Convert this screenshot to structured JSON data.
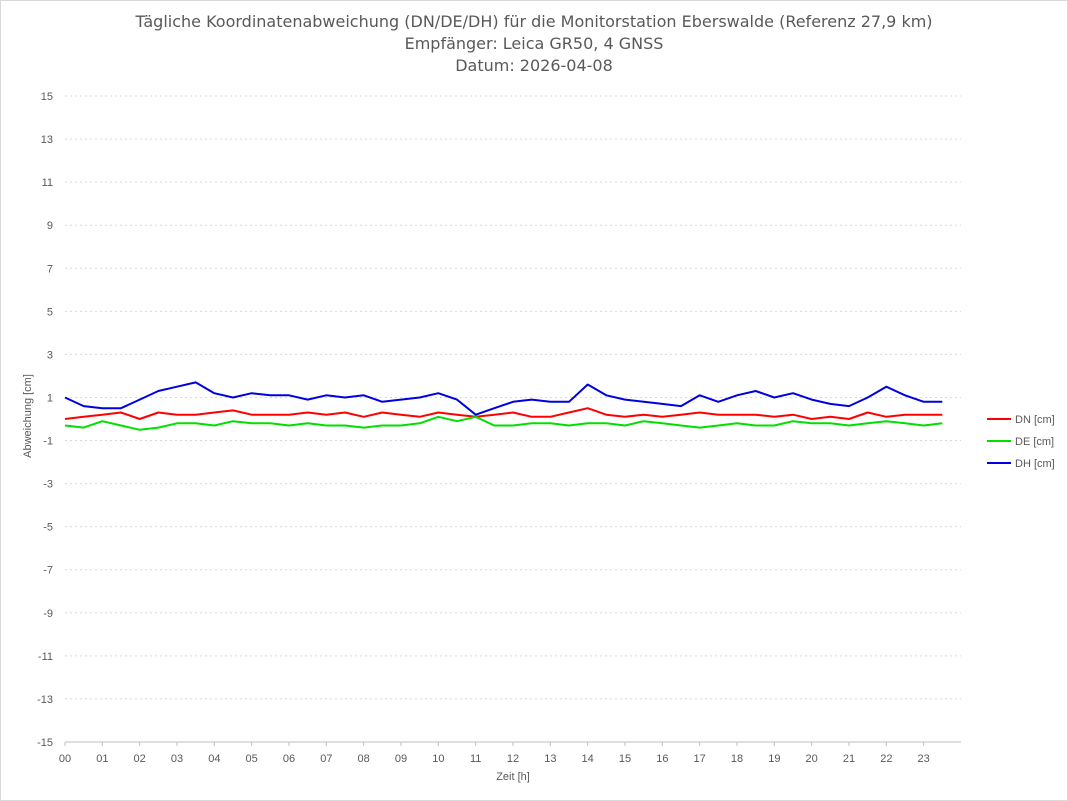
{
  "chart_data": {
    "type": "line",
    "title": "Tägliche Koordinatenabweichung (DN/DE/DH) für die Monitorstation Eberswalde (Referenz 27,9 km)",
    "subtitle_1": "Empfänger: Leica GR50, 4 GNSS",
    "subtitle_2": "Datum: 2026-04-08",
    "xlabel": "Zeit [h]",
    "ylabel": "Abweichung [cm]",
    "xlim": [
      0,
      24
    ],
    "ylim": [
      -15,
      15
    ],
    "x_ticks": [
      "00",
      "01",
      "02",
      "03",
      "04",
      "05",
      "06",
      "07",
      "08",
      "09",
      "10",
      "11",
      "12",
      "13",
      "14",
      "15",
      "16",
      "17",
      "18",
      "19",
      "20",
      "21",
      "22",
      "23"
    ],
    "y_ticks": [
      "15",
      "13",
      "11",
      "9",
      "7",
      "5",
      "3",
      "1",
      "-1",
      "-3",
      "-5",
      "-7",
      "-9",
      "-11",
      "-13",
      "-15"
    ],
    "grid": true,
    "legend_position": "right",
    "x": [
      0,
      0.5,
      1,
      1.5,
      2,
      2.5,
      3,
      3.5,
      4,
      4.5,
      5,
      5.5,
      6,
      6.5,
      7,
      7.5,
      8,
      8.5,
      9,
      9.5,
      10,
      10.5,
      11,
      11.5,
      12,
      12.5,
      13,
      13.5,
      14,
      14.5,
      15,
      15.5,
      16,
      16.5,
      17,
      17.5,
      18,
      18.5,
      19,
      19.5,
      20,
      20.5,
      21,
      21.5,
      22,
      22.5,
      23,
      23.5
    ],
    "series": [
      {
        "name": "DN [cm]",
        "color": "#ff0000",
        "values": [
          0.0,
          0.1,
          0.2,
          0.3,
          0.0,
          0.3,
          0.2,
          0.2,
          0.3,
          0.4,
          0.2,
          0.2,
          0.2,
          0.3,
          0.2,
          0.3,
          0.1,
          0.3,
          0.2,
          0.1,
          0.3,
          0.2,
          0.1,
          0.2,
          0.3,
          0.1,
          0.1,
          0.3,
          0.5,
          0.2,
          0.1,
          0.2,
          0.1,
          0.2,
          0.3,
          0.2,
          0.2,
          0.2,
          0.1,
          0.2,
          0.0,
          0.1,
          0.0,
          0.3,
          0.1,
          0.2,
          0.2,
          0.2
        ]
      },
      {
        "name": "DE [cm]",
        "color": "#00e000",
        "values": [
          -0.3,
          -0.4,
          -0.1,
          -0.3,
          -0.5,
          -0.4,
          -0.2,
          -0.2,
          -0.3,
          -0.1,
          -0.2,
          -0.2,
          -0.3,
          -0.2,
          -0.3,
          -0.3,
          -0.4,
          -0.3,
          -0.3,
          -0.2,
          0.1,
          -0.1,
          0.1,
          -0.3,
          -0.3,
          -0.2,
          -0.2,
          -0.3,
          -0.2,
          -0.2,
          -0.3,
          -0.1,
          -0.2,
          -0.3,
          -0.4,
          -0.3,
          -0.2,
          -0.3,
          -0.3,
          -0.1,
          -0.2,
          -0.2,
          -0.3,
          -0.2,
          -0.1,
          -0.2,
          -0.3,
          -0.2
        ]
      },
      {
        "name": "DH [cm]",
        "color": "#0000e0",
        "values": [
          1.0,
          0.6,
          0.5,
          0.5,
          0.9,
          1.3,
          1.5,
          1.7,
          1.2,
          1.0,
          1.2,
          1.1,
          1.1,
          0.9,
          1.1,
          1.0,
          1.1,
          0.8,
          0.9,
          1.0,
          1.2,
          0.9,
          0.2,
          0.5,
          0.8,
          0.9,
          0.8,
          0.8,
          1.6,
          1.1,
          0.9,
          0.8,
          0.7,
          0.6,
          1.1,
          0.8,
          1.1,
          1.3,
          1.0,
          1.2,
          0.9,
          0.7,
          0.6,
          1.0,
          1.5,
          1.1,
          0.8,
          0.8
        ]
      }
    ]
  }
}
